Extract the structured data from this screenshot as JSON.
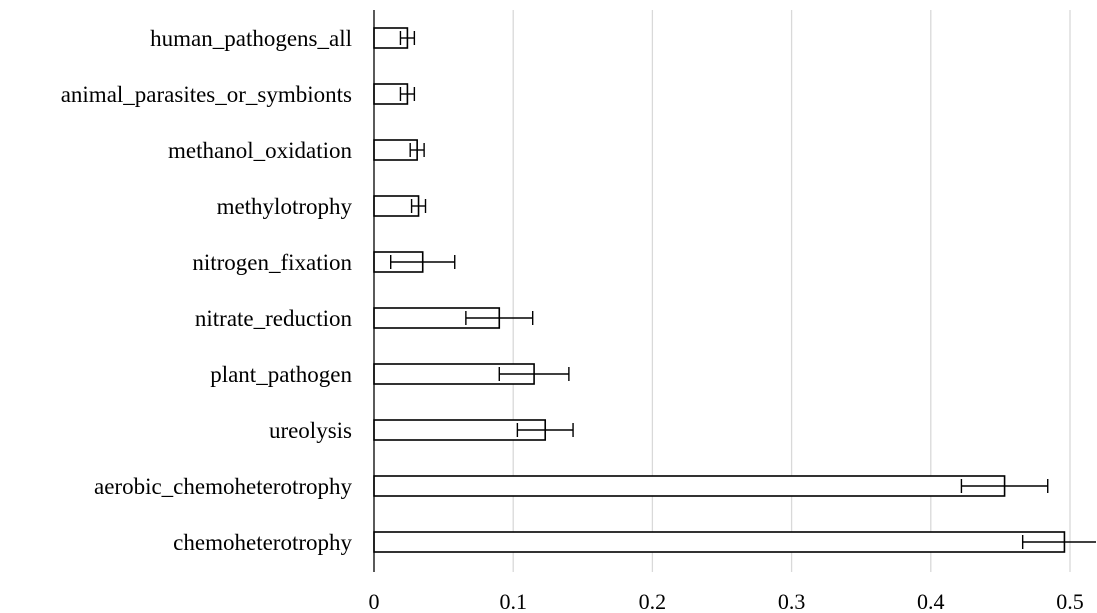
{
  "chart_data": {
    "type": "bar",
    "orientation": "horizontal",
    "categories": [
      "human_pathogens_all",
      "animal_parasites_or_symbionts",
      "methanol_oxidation",
      "methylotrophy",
      "nitrogen_fixation",
      "nitrate_reduction",
      "plant_pathogen",
      "ureolysis",
      "aerobic_chemoheterotrophy",
      "chemoheterotrophy"
    ],
    "values": [
      0.024,
      0.024,
      0.031,
      0.032,
      0.035,
      0.09,
      0.115,
      0.123,
      0.453,
      0.496
    ],
    "errors": [
      0.005,
      0.005,
      0.005,
      0.005,
      0.023,
      0.024,
      0.025,
      0.02,
      0.031,
      0.03
    ],
    "xlim": [
      0,
      0.5
    ],
    "xticks": [
      0,
      0.1,
      0.2,
      0.3,
      0.4,
      0.5
    ],
    "xtick_labels": [
      "0",
      "0.1",
      "0.2",
      "0.3",
      "0.4",
      "0.5"
    ],
    "grid": "vertical",
    "legend": "none",
    "colors": {
      "bar_fill": "#ffffff",
      "bar_stroke": "#000000",
      "grid": "#d9d9d9",
      "axis": "#000000"
    }
  }
}
